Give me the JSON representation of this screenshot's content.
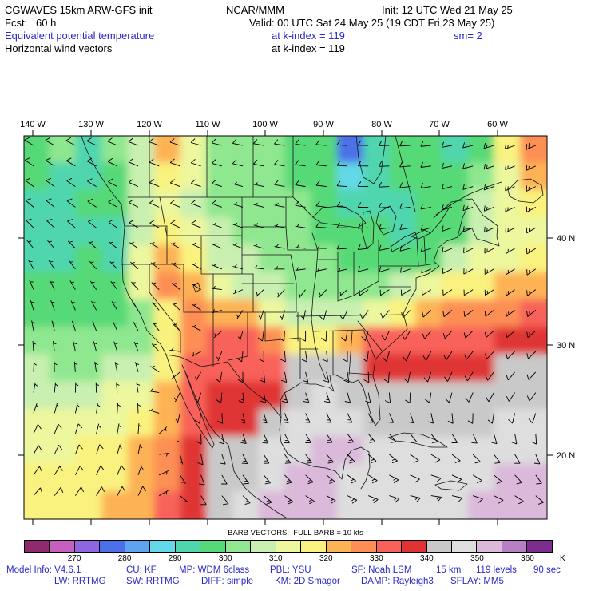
{
  "header": {
    "model_title": "CGWAVES 15km ARW-GFS init",
    "center_title": "NCAR/MMM",
    "init_label": "Init: 12 UTC Wed 21 May 25",
    "fcst_label": "Fcst:   60 h",
    "valid_label": "Valid: 00 UTC Sat 24 May 25 (19 CDT Fri 23 May 25)",
    "field_label": "Equivalent potential temperature",
    "field_level": "at k-index = 119",
    "smooth_label": "sm= 2",
    "vector_label": "Horizontal wind vectors",
    "vector_level": "at k-index = 119"
  },
  "colors": {
    "accent_blue": "#2a2ac8",
    "map_outline": "#141414",
    "frame": "#000000"
  },
  "map_axes": {
    "lon_labels": [
      "140 W",
      "130 W",
      "120 W",
      "110 W",
      "100 W",
      "90 W",
      "80 W",
      "70 W",
      "60 W"
    ],
    "lat_labels": [
      "40 N",
      "30 N",
      "20 N"
    ]
  },
  "colorbar": {
    "caption": "BARB VECTORS:  FULL BARB = 10 kts",
    "unit": "K",
    "tick_labels": [
      "270",
      "280",
      "290",
      "300",
      "310",
      "320",
      "330",
      "340",
      "350",
      "360"
    ]
  },
  "footer": {
    "line1_items": [
      "Model Info: V4.6.1",
      "CU: KF",
      "MP: WDM 6class",
      "PBL: YSU",
      "SF: Noah LSM",
      "15 km",
      "119 levels",
      "90 sec"
    ],
    "line2_items": [
      "LW: RRTMG",
      "SW: RRTMG",
      "DIFF: simple",
      "KM: 2D Smagor",
      "DAMP: Rayleigh3",
      "SFLAY: MM5"
    ]
  },
  "chart_data": {
    "type": "heatmap",
    "title": "Equivalent potential temperature (K) with horizontal wind vectors",
    "units": "K",
    "x_ticks": [
      "140 W",
      "130 W",
      "120 W",
      "110 W",
      "100 W",
      "90 W",
      "80 W",
      "70 W",
      "60 W"
    ],
    "y_ticks": [
      "40 N",
      "30 N",
      "20 N"
    ],
    "legend_note": "FULL BARB = 10 kts",
    "colorbar_levels": [
      260,
      265,
      270,
      275,
      280,
      285,
      290,
      295,
      300,
      305,
      310,
      315,
      320,
      325,
      330,
      335,
      340,
      345,
      350,
      355,
      360
    ],
    "colorbar_colors": [
      "#8f2a6e",
      "#c75fc0",
      "#8f66e0",
      "#4b6fe8",
      "#5ea4f0",
      "#63d8e8",
      "#4fd6ae",
      "#57d977",
      "#8fe78f",
      "#c9f0b0",
      "#ecf79e",
      "#faf27e",
      "#fdb254",
      "#fd8f55",
      "#f8625a",
      "#e03434",
      "#c9c9c9",
      "#dedede",
      "#dab9da",
      "#b77fc4",
      "#7d2d8f"
    ],
    "theta_e_grid": {
      "cols": 20,
      "rows": 14,
      "values": [
        [
          298,
          300,
          294,
          300,
          306,
          320,
          310,
          302,
          300,
          300,
          299,
          298,
          278,
          290,
          296,
          297,
          294,
          299,
          315,
          326
        ],
        [
          297,
          293,
          291,
          299,
          306,
          316,
          311,
          304,
          301,
          300,
          299,
          297,
          288,
          291,
          295,
          296,
          296,
          300,
          311,
          320
        ],
        [
          292,
          290,
          295,
          298,
          305,
          310,
          308,
          303,
          302,
          301,
          300,
          298,
          290,
          292,
          294,
          295,
          297,
          305,
          312,
          317
        ],
        [
          291,
          290,
          294,
          292,
          308,
          316,
          310,
          305,
          303,
          302,
          301,
          299,
          296,
          295,
          294,
          296,
          299,
          308,
          312,
          314
        ],
        [
          294,
          292,
          295,
          294,
          310,
          322,
          318,
          309,
          306,
          303,
          302,
          300,
          299,
          297,
          296,
          298,
          306,
          311,
          313,
          316
        ],
        [
          296,
          295,
          296,
          297,
          314,
          326,
          324,
          314,
          308,
          305,
          303,
          304,
          302,
          304,
          307,
          310,
          315,
          318,
          320,
          322
        ],
        [
          299,
          298,
          298,
          299,
          302,
          318,
          326,
          324,
          320,
          310,
          306,
          305,
          306,
          310,
          318,
          322,
          325,
          326,
          328,
          330
        ],
        [
          302,
          300,
          300,
          302,
          304,
          315,
          328,
          330,
          330,
          326,
          316,
          318,
          324,
          332,
          334,
          334,
          333,
          334,
          336,
          338
        ],
        [
          305,
          304,
          304,
          306,
          308,
          318,
          330,
          334,
          334,
          334,
          340,
          342,
          342,
          338,
          336,
          336,
          337,
          338,
          340,
          342
        ],
        [
          308,
          307,
          308,
          310,
          312,
          322,
          332,
          336,
          336,
          338,
          344,
          346,
          344,
          342,
          340,
          340,
          340,
          342,
          344,
          344
        ],
        [
          311,
          310,
          312,
          314,
          316,
          324,
          334,
          338,
          336,
          344,
          348,
          346,
          346,
          344,
          344,
          344,
          344,
          344,
          346,
          346
        ],
        [
          314,
          313,
          315,
          317,
          320,
          326,
          335,
          340,
          340,
          346,
          348,
          352,
          350,
          348,
          346,
          345,
          346,
          346,
          348,
          348
        ],
        [
          316,
          315,
          317,
          319,
          322,
          328,
          336,
          342,
          344,
          348,
          350,
          350,
          348,
          348,
          347,
          346,
          347,
          348,
          350,
          350
        ],
        [
          318,
          317,
          319,
          321,
          324,
          330,
          338,
          344,
          346,
          350,
          352,
          350,
          349,
          348,
          348,
          347,
          348,
          350,
          352,
          352
        ]
      ]
    },
    "wind": {
      "full_barb_kts": 10,
      "dir_from_deg": [
        [
          300,
          295,
          290,
          285,
          280,
          275,
          270,
          265,
          255,
          245
        ],
        [
          310,
          305,
          295,
          290,
          285,
          280,
          270,
          260,
          250,
          240
        ],
        [
          330,
          320,
          310,
          300,
          290,
          270,
          260,
          250,
          240,
          235
        ],
        [
          350,
          340,
          330,
          310,
          190,
          180,
          200,
          220,
          230,
          230
        ],
        [
          10,
          0,
          350,
          200,
          170,
          160,
          170,
          190,
          210,
          220
        ],
        [
          30,
          20,
          10,
          170,
          150,
          140,
          130,
          120,
          140,
          160
        ],
        [
          50,
          40,
          30,
          140,
          120,
          110,
          100,
          90,
          100,
          120
        ]
      ],
      "speed_kts": [
        [
          10,
          10,
          10,
          10,
          10,
          10,
          10,
          10,
          15,
          20
        ],
        [
          10,
          10,
          10,
          10,
          5,
          10,
          10,
          10,
          15,
          15
        ],
        [
          5,
          5,
          5,
          5,
          5,
          5,
          10,
          10,
          15,
          15
        ],
        [
          5,
          5,
          5,
          5,
          10,
          10,
          10,
          10,
          10,
          15
        ],
        [
          5,
          5,
          5,
          10,
          15,
          15,
          10,
          10,
          10,
          10
        ],
        [
          10,
          10,
          5,
          10,
          15,
          15,
          15,
          10,
          10,
          10
        ],
        [
          10,
          10,
          10,
          10,
          15,
          15,
          15,
          15,
          10,
          10
        ]
      ]
    }
  }
}
